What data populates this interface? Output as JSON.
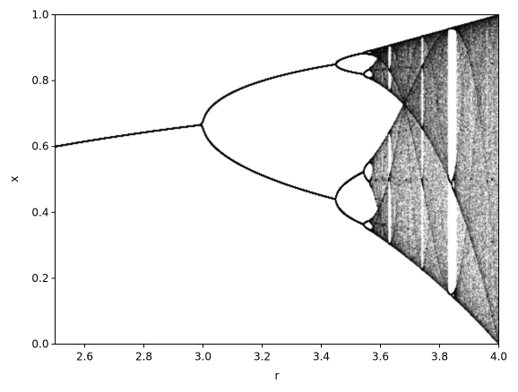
{
  "chart_data": {
    "type": "scatter",
    "title": "",
    "xlabel": "r",
    "ylabel": "x",
    "xlim": [
      2.5,
      4.0
    ],
    "ylim": [
      0.0,
      1.0
    ],
    "xticks": [
      2.6,
      2.8,
      3.0,
      3.2,
      3.4,
      3.6,
      3.8,
      4.0
    ],
    "xtick_labels": [
      "2.6",
      "2.8",
      "3.0",
      "3.2",
      "3.4",
      "3.6",
      "3.8",
      "4.0"
    ],
    "yticks": [
      0.0,
      0.2,
      0.4,
      0.6,
      0.8,
      1.0
    ],
    "ytick_labels": [
      "0.0",
      "0.2",
      "0.4",
      "0.6",
      "0.8",
      "1.0"
    ],
    "grid": false,
    "legend": "none",
    "series": [
      {
        "map": "logistic",
        "x_values": "r",
        "y_values": "x",
        "r_range": [
          2.5,
          4.0
        ],
        "x0": 0.5,
        "color": "#000000",
        "key_points": [
          {
            "r": 2.5,
            "x": [
              0.6
            ]
          },
          {
            "r": 3.0,
            "x": [
              0.667
            ]
          },
          {
            "r": 3.45,
            "x": [
              0.44,
              0.85
            ]
          },
          {
            "r": 3.55,
            "x": [
              0.37,
              0.52,
              0.82,
              0.89
            ]
          },
          {
            "r": 3.84,
            "x": [
              0.15,
              0.5,
              0.96
            ]
          },
          {
            "r": 4.0,
            "x": [
              0.0,
              1.0
            ]
          }
        ]
      }
    ]
  }
}
